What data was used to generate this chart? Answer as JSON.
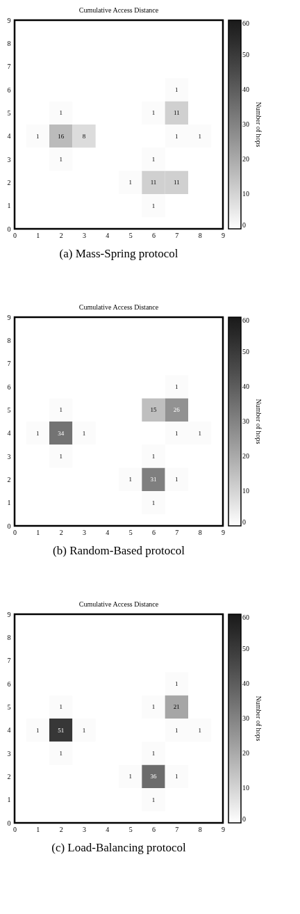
{
  "chart_data": [
    {
      "type": "heatmap",
      "title": "Cumulative Access Distance",
      "annotations": [
        "(a) Mass-Spring protocol"
      ],
      "x": [
        1,
        2,
        3,
        4,
        5,
        6,
        7,
        8
      ],
      "y_categories": [
        9,
        8,
        7,
        6,
        5,
        4,
        3,
        2,
        1,
        0
      ],
      "cells": [
        [
          null,
          null,
          null,
          null,
          null,
          null,
          null,
          null
        ],
        [
          null,
          null,
          null,
          null,
          null,
          null,
          null,
          null
        ],
        [
          null,
          null,
          null,
          null,
          null,
          null,
          null,
          null
        ],
        [
          null,
          null,
          null,
          null,
          null,
          null,
          1,
          null
        ],
        [
          null,
          1,
          null,
          null,
          null,
          1,
          11,
          null
        ],
        [
          1,
          16,
          8,
          null,
          null,
          null,
          1,
          1
        ],
        [
          null,
          1,
          null,
          null,
          null,
          1,
          null,
          null
        ],
        [
          null,
          null,
          null,
          null,
          1,
          11,
          11,
          null
        ],
        [
          null,
          null,
          null,
          null,
          null,
          1,
          null,
          null
        ],
        [
          null,
          null,
          null,
          null,
          null,
          null,
          null,
          null
        ]
      ],
      "xlim": [
        0,
        9
      ],
      "xticks": [
        0,
        1,
        2,
        3,
        4,
        5,
        6,
        7,
        8,
        9
      ],
      "clabel": "Number of hops",
      "clim": [
        0,
        60
      ],
      "cticks": [
        0,
        10,
        20,
        30,
        40,
        50,
        60
      ],
      "data_labels": true,
      "grid": false
    },
    {
      "type": "heatmap",
      "title": "Cumulative Access Distance",
      "annotations": [
        "(b) Random-Based protocol"
      ],
      "x": [
        1,
        2,
        3,
        4,
        5,
        6,
        7,
        8
      ],
      "y_categories": [
        9,
        8,
        7,
        6,
        5,
        4,
        3,
        2,
        1,
        0
      ],
      "cells": [
        [
          null,
          null,
          null,
          null,
          null,
          null,
          null,
          null
        ],
        [
          null,
          null,
          null,
          null,
          null,
          null,
          null,
          null
        ],
        [
          null,
          null,
          null,
          null,
          null,
          null,
          null,
          null
        ],
        [
          null,
          null,
          null,
          null,
          null,
          null,
          1,
          null
        ],
        [
          null,
          1,
          null,
          null,
          null,
          15,
          26,
          null
        ],
        [
          1,
          34,
          1,
          null,
          null,
          null,
          1,
          1
        ],
        [
          null,
          1,
          null,
          null,
          null,
          1,
          null,
          null
        ],
        [
          null,
          null,
          null,
          null,
          1,
          31,
          1,
          null
        ],
        [
          null,
          null,
          null,
          null,
          null,
          1,
          null,
          null
        ],
        [
          null,
          null,
          null,
          null,
          null,
          null,
          null,
          null
        ]
      ],
      "xlim": [
        0,
        9
      ],
      "xticks": [
        0,
        1,
        2,
        3,
        4,
        5,
        6,
        7,
        8,
        9
      ],
      "clabel": "Number of hops",
      "clim": [
        0,
        60
      ],
      "cticks": [
        0,
        10,
        20,
        30,
        40,
        50,
        60
      ],
      "data_labels": true,
      "grid": false
    },
    {
      "type": "heatmap",
      "title": "Cumulative Access Distance",
      "annotations": [
        "(c) Load-Balancing protocol"
      ],
      "x": [
        1,
        2,
        3,
        4,
        5,
        6,
        7,
        8
      ],
      "y_categories": [
        9,
        8,
        7,
        6,
        5,
        4,
        3,
        2,
        1,
        0
      ],
      "cells": [
        [
          null,
          null,
          null,
          null,
          null,
          null,
          null,
          null
        ],
        [
          null,
          null,
          null,
          null,
          null,
          null,
          null,
          null
        ],
        [
          null,
          null,
          null,
          null,
          null,
          null,
          null,
          null
        ],
        [
          null,
          null,
          null,
          null,
          null,
          null,
          1,
          null
        ],
        [
          null,
          1,
          null,
          null,
          null,
          1,
          21,
          null
        ],
        [
          1,
          51,
          1,
          null,
          null,
          null,
          1,
          1
        ],
        [
          null,
          1,
          null,
          null,
          null,
          1,
          null,
          null
        ],
        [
          null,
          null,
          null,
          null,
          1,
          36,
          1,
          null
        ],
        [
          null,
          null,
          null,
          null,
          null,
          1,
          null,
          null
        ],
        [
          null,
          null,
          null,
          null,
          null,
          null,
          null,
          null
        ]
      ],
      "xlim": [
        0,
        9
      ],
      "xticks": [
        0,
        1,
        2,
        3,
        4,
        5,
        6,
        7,
        8,
        9
      ],
      "clabel": "Number of hops",
      "clim": [
        0,
        60
      ],
      "cticks": [
        0,
        10,
        20,
        30,
        40,
        50,
        60
      ],
      "data_labels": true,
      "grid": false
    }
  ]
}
